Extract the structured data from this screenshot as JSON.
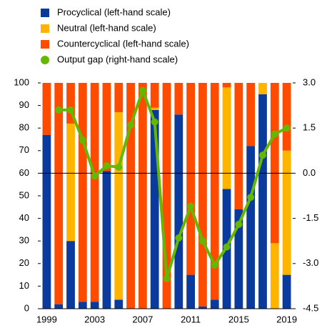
{
  "chart_data": {
    "type": "bar",
    "categories": [
      "1999",
      null,
      null,
      null,
      "2003",
      null,
      null,
      null,
      "2007",
      null,
      null,
      null,
      "2011",
      null,
      null,
      null,
      "2015",
      null,
      null,
      null,
      "2019"
    ],
    "stacked": true,
    "series": [
      {
        "name": "Procyclical (left-hand scale)",
        "color": "#0a3a9c",
        "values": [
          77,
          2,
          30,
          3,
          3,
          61,
          4,
          0,
          0,
          88,
          0,
          86,
          15,
          1,
          4,
          53,
          44,
          72,
          95,
          0,
          15
        ]
      },
      {
        "name": "Neutral (left-hand scale)",
        "color": "#ffb400",
        "values": [
          0,
          0,
          52,
          0,
          0,
          0,
          83,
          0,
          0,
          1,
          0,
          0,
          0,
          0,
          0,
          45,
          0,
          0,
          5,
          29,
          55
        ]
      },
      {
        "name": "Countercyclical (left-hand scale)",
        "color": "#ff4b00",
        "values": [
          23,
          98,
          18,
          97,
          97,
          39,
          13,
          100,
          100,
          11,
          100,
          14,
          85,
          99,
          96,
          2,
          56,
          28,
          0,
          71,
          30
        ]
      },
      {
        "name": "Output gap (right-hand scale)",
        "type": "line",
        "axis": "y2",
        "color": "#65b800",
        "values": [
          null,
          2.1,
          2.1,
          1.1,
          -0.1,
          0.25,
          0.2,
          1.6,
          2.75,
          1.7,
          -3.5,
          -2.15,
          -1.1,
          -2.25,
          -3.05,
          -2.45,
          -1.7,
          -0.8,
          0.6,
          1.3,
          1.5
        ]
      }
    ],
    "ylim": [
      0,
      100
    ],
    "yticks": [
      0,
      10,
      20,
      30,
      40,
      50,
      60,
      70,
      80,
      90,
      100
    ],
    "y2lim": [
      -4.5,
      3
    ],
    "y2ticks": [
      {
        "value": 3,
        "label": "3.0"
      },
      1.5,
      {
        "value": 0,
        "label": "0.0"
      },
      -1.5,
      {
        "value": -3,
        "label": "-3.0"
      },
      -4.5
    ],
    "y2_reference_line": 0,
    "grid": false
  }
}
